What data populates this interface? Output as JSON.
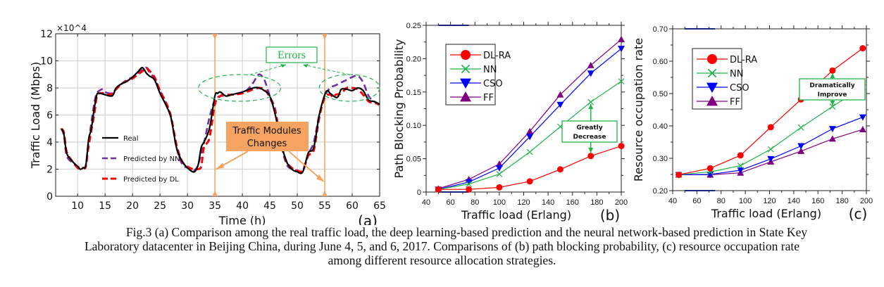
{
  "chart_data": [
    {
      "type": "line",
      "panel_label": "(a)",
      "title": "",
      "xlabel": "Time (h)",
      "ylabel": "Traffic Load (Mbps)",
      "y_multiplier": "×10^4",
      "xlim": [
        6,
        65
      ],
      "ylim": [
        0,
        12
      ],
      "xticks": [
        10,
        15,
        20,
        25,
        30,
        35,
        40,
        45,
        50,
        55,
        60,
        65
      ],
      "yticks": [
        0,
        2,
        4,
        6,
        8,
        10,
        12
      ],
      "grid": true,
      "legend_position": "lower-left",
      "series": [
        {
          "name": "Real",
          "color": "#000000",
          "dash": "solid",
          "x": [
            7,
            7.5,
            8,
            9,
            10,
            10.5,
            11,
            11.5,
            12,
            12.5,
            13,
            13.5,
            14,
            15,
            16,
            16.5,
            17,
            18,
            19,
            20,
            21,
            21.8,
            22.5,
            23,
            24,
            25,
            26,
            27,
            28,
            29,
            30,
            31,
            31.5,
            32,
            32.5,
            33,
            34,
            35,
            35.5,
            36,
            37,
            38,
            40,
            42,
            43,
            44,
            45,
            46,
            47,
            48,
            49,
            50,
            51,
            52,
            53,
            54,
            55,
            55.5,
            56,
            57,
            57.5,
            58,
            59,
            60,
            61,
            62,
            63,
            64,
            65
          ],
          "y": [
            5.0,
            4.6,
            3.2,
            2.6,
            2.2,
            2.0,
            2.1,
            2.3,
            4.2,
            5.0,
            6.4,
            7.5,
            7.6,
            7.5,
            7.4,
            7.5,
            8.0,
            8.3,
            8.5,
            8.8,
            9.2,
            9.5,
            9.1,
            8.9,
            8.6,
            7.6,
            6.8,
            5.8,
            3.6,
            2.6,
            2.1,
            1.8,
            1.9,
            2.4,
            3.6,
            4.0,
            5.0,
            7.4,
            7.6,
            7.7,
            7.4,
            7.5,
            7.7,
            8.0,
            8.0,
            7.8,
            7.4,
            6.0,
            4.0,
            2.6,
            2.0,
            1.8,
            1.8,
            3.2,
            3.6,
            6.0,
            7.5,
            7.8,
            7.6,
            7.3,
            7.4,
            7.9,
            7.9,
            7.8,
            8.0,
            7.8,
            7.1,
            7.0,
            6.8
          ]
        },
        {
          "name": "Predicted by NN",
          "color": "#7030a0",
          "dash": "dashed",
          "x": [
            7,
            7.5,
            8,
            9,
            10,
            10.5,
            11,
            11.5,
            12,
            13,
            13.5,
            14,
            14.5,
            15,
            16,
            17,
            18,
            19,
            20,
            21,
            22,
            22.5,
            23,
            24,
            25,
            26,
            27,
            28,
            29,
            30,
            31,
            31.5,
            32,
            33,
            34,
            35,
            36,
            37,
            38,
            40,
            41,
            42,
            43,
            44,
            45,
            46,
            47,
            48,
            49,
            50,
            51,
            52,
            53,
            54,
            55,
            56,
            57,
            58,
            59,
            60,
            61,
            62,
            63,
            64,
            65
          ],
          "y": [
            5.0,
            4.5,
            3.0,
            2.5,
            2.2,
            2.1,
            2.1,
            2.3,
            4.0,
            6.8,
            7.6,
            7.8,
            7.9,
            7.7,
            7.6,
            7.9,
            8.3,
            8.6,
            8.8,
            9.1,
            9.4,
            9.5,
            9.2,
            8.7,
            7.8,
            6.9,
            5.8,
            3.6,
            2.4,
            2.1,
            1.9,
            2.0,
            2.4,
            3.9,
            5.8,
            7.1,
            7.4,
            7.4,
            7.5,
            7.6,
            7.9,
            8.4,
            9.0,
            8.6,
            7.4,
            6.4,
            4.0,
            2.4,
            2.0,
            1.9,
            1.9,
            3.1,
            4.0,
            6.0,
            7.4,
            8.0,
            8.2,
            8.4,
            8.6,
            8.8,
            8.9,
            8.4,
            7.4,
            7.0,
            6.7
          ]
        },
        {
          "name": "Predicted by DL",
          "color": "#ff0000",
          "dash": "dashed",
          "x": [
            7,
            7.5,
            8,
            9,
            10,
            10.5,
            11,
            11.5,
            12,
            13,
            13.5,
            14,
            15,
            16,
            17,
            18,
            19,
            20,
            21,
            22,
            22.5,
            23,
            24,
            25,
            26,
            27,
            28,
            29,
            30,
            31,
            31.8,
            32.5,
            33,
            34,
            35,
            36,
            37,
            38,
            40,
            42,
            43,
            44,
            45,
            46,
            47,
            48,
            49,
            50,
            51,
            52,
            53,
            54,
            55,
            56,
            56.5,
            57,
            58,
            59,
            60,
            61,
            62,
            63,
            64,
            65
          ],
          "y": [
            5.0,
            4.7,
            3.3,
            2.6,
            2.1,
            2.0,
            2.1,
            2.2,
            3.7,
            6.0,
            7.4,
            7.6,
            7.6,
            7.5,
            7.9,
            8.3,
            8.5,
            8.7,
            9.0,
            9.3,
            9.5,
            9.3,
            8.8,
            7.8,
            7.0,
            5.9,
            3.8,
            2.6,
            2.2,
            2.0,
            2.0,
            2.2,
            3.6,
            4.3,
            6.8,
            7.4,
            7.5,
            7.5,
            7.6,
            7.9,
            8.0,
            7.9,
            7.3,
            6.2,
            4.0,
            2.6,
            2.1,
            1.9,
            1.9,
            3.0,
            3.4,
            5.8,
            7.3,
            7.5,
            7.3,
            7.5,
            7.6,
            8.0,
            8.0,
            7.9,
            7.5,
            7.0,
            6.9,
            6.8
          ]
        }
      ],
      "annotations": {
        "errors_label": "Errors",
        "modules_label_line1": "Traffic Modules",
        "modules_label_line2": "Changes",
        "module_change_times": [
          35,
          55
        ],
        "error_regions_x": [
          [
            32,
            47
          ],
          [
            54,
            65
          ]
        ]
      }
    },
    {
      "type": "line",
      "panel_label": "(b)",
      "title": "",
      "xlabel": "Traffic load (Erlang)",
      "ylabel": "Path Blocking Probability",
      "xlim": [
        40,
        200
      ],
      "ylim": [
        0,
        0.25
      ],
      "xticks": [
        40,
        60,
        80,
        100,
        120,
        140,
        160,
        180,
        200
      ],
      "yticks": [
        0,
        0.05,
        0.1,
        0.15,
        0.2,
        0.25
      ],
      "ytick_labels": [
        "0",
        "0.05",
        "0.10",
        "0.15",
        "0.20",
        "0.25"
      ],
      "grid": false,
      "legend_position": "top-left",
      "x": [
        50,
        75,
        100,
        125,
        150,
        175,
        200
      ],
      "series": [
        {
          "name": "DL-RA",
          "color": "#ff0000",
          "marker": "circle",
          "values": [
            0.004,
            0.004,
            0.007,
            0.016,
            0.034,
            0.054,
            0.069
          ]
        },
        {
          "name": "NN",
          "color": "#22b24c",
          "marker": "x",
          "values": [
            0.004,
            0.012,
            0.027,
            0.06,
            0.098,
            0.135,
            0.166
          ]
        },
        {
          "name": "CSO",
          "color": "#0000ff",
          "marker": "triangle-down",
          "values": [
            0.004,
            0.015,
            0.036,
            0.083,
            0.131,
            0.178,
            0.215
          ]
        },
        {
          "name": "FF",
          "color": "#800080",
          "marker": "triangle-up",
          "values": [
            0.005,
            0.019,
            0.042,
            0.091,
            0.146,
            0.19,
            0.229
          ]
        }
      ],
      "annotation": {
        "line1": "Greatly",
        "line2": "Decrease",
        "x": 175
      }
    },
    {
      "type": "line",
      "panel_label": "(c)",
      "title": "",
      "xlabel": "Traffic load (Erlang)",
      "ylabel": "Resource occupation rate",
      "xlim": [
        40,
        200
      ],
      "ylim": [
        0.2,
        0.7
      ],
      "xticks": [
        40,
        60,
        80,
        100,
        120,
        140,
        160,
        180,
        200
      ],
      "yticks": [
        0.2,
        0.3,
        0.4,
        0.5,
        0.6,
        0.7
      ],
      "ytick_labels": [
        "0.20",
        "0.30",
        "0.40",
        "0.50",
        "0.60",
        "0.70"
      ],
      "grid": false,
      "legend_position": "top-left",
      "x": [
        45,
        71,
        96,
        121,
        146,
        172,
        197
      ],
      "series": [
        {
          "name": "DL-RA",
          "color": "#ff0000",
          "marker": "circle",
          "values": [
            0.249,
            0.269,
            0.309,
            0.396,
            0.482,
            0.571,
            0.64
          ]
        },
        {
          "name": "NN",
          "color": "#22b24c",
          "marker": "x",
          "values": [
            0.249,
            0.258,
            0.277,
            0.328,
            0.395,
            0.46,
            0.52
          ]
        },
        {
          "name": "CSO",
          "color": "#0000ff",
          "marker": "triangle-down",
          "values": [
            0.249,
            0.25,
            0.263,
            0.298,
            0.338,
            0.391,
            0.427
          ]
        },
        {
          "name": "FF",
          "color": "#800080",
          "marker": "triangle-up",
          "values": [
            0.249,
            0.249,
            0.255,
            0.289,
            0.322,
            0.36,
            0.389
          ]
        }
      ],
      "annotation": {
        "line1": "Dramatically",
        "line2": "Improve",
        "x": 172
      }
    }
  ],
  "caption": {
    "line1": "Fig.3 (a) Comparison among the real traffic load, the deep learning-based prediction and the neural network-based prediction in State Key",
    "line2": "Laboratory datacenter in Beijing China, during June 4, 5, and 6, 2017. Comparisons of (b) path blocking probability, (c) resource occupation rate",
    "line3": "among different resource allocation strategies."
  }
}
